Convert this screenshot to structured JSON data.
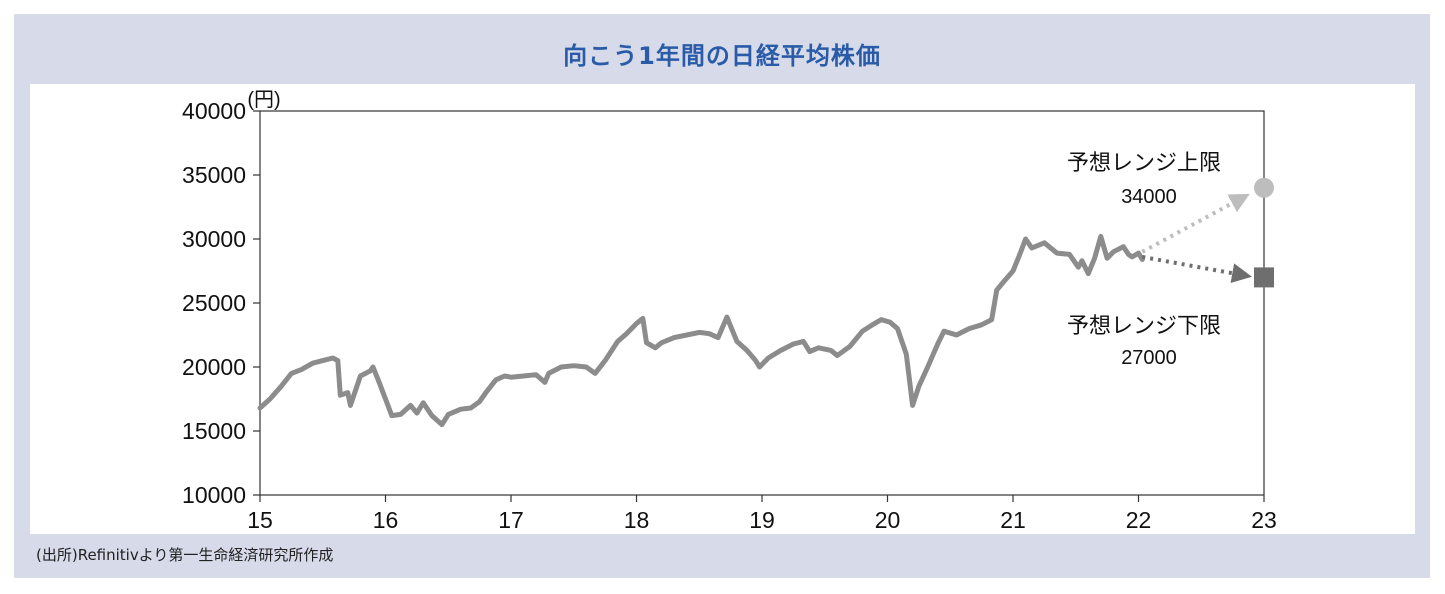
{
  "title": "向こう1年間の日経平均株価",
  "source": "(出所)Refinitivより第一生命経済研究所作成",
  "colors": {
    "background": "#d6dae9",
    "title": "#2a5ba8",
    "line": "#8c8c8c",
    "upper": "#bdbdbd",
    "lower": "#6e6e6e"
  },
  "chart_data": {
    "type": "line",
    "ylabel_unit": "(円)",
    "ylim": [
      10000,
      40000
    ],
    "xlim": [
      15,
      23
    ],
    "x_ticks": [
      "15",
      "16",
      "17",
      "18",
      "19",
      "20",
      "21",
      "22",
      "23"
    ],
    "y_ticks": [
      "10000",
      "15000",
      "20000",
      "25000",
      "30000",
      "35000",
      "40000"
    ],
    "series": [
      {
        "points": [
          [
            15.0,
            16800
          ],
          [
            15.08,
            17500
          ],
          [
            15.17,
            18500
          ],
          [
            15.25,
            19500
          ],
          [
            15.33,
            19800
          ],
          [
            15.42,
            20300
          ],
          [
            15.5,
            20500
          ],
          [
            15.58,
            20700
          ],
          [
            15.62,
            20500
          ],
          [
            15.64,
            17800
          ],
          [
            15.7,
            18000
          ],
          [
            15.72,
            17000
          ],
          [
            15.8,
            19300
          ],
          [
            15.88,
            19700
          ],
          [
            15.9,
            20000
          ],
          [
            15.95,
            18800
          ],
          [
            16.0,
            17500
          ],
          [
            16.05,
            16200
          ],
          [
            16.12,
            16300
          ],
          [
            16.2,
            17000
          ],
          [
            16.25,
            16400
          ],
          [
            16.3,
            17200
          ],
          [
            16.37,
            16200
          ],
          [
            16.45,
            15500
          ],
          [
            16.5,
            16300
          ],
          [
            16.6,
            16700
          ],
          [
            16.68,
            16800
          ],
          [
            16.75,
            17300
          ],
          [
            16.8,
            18000
          ],
          [
            16.88,
            19000
          ],
          [
            16.95,
            19300
          ],
          [
            17.0,
            19200
          ],
          [
            17.1,
            19300
          ],
          [
            17.2,
            19400
          ],
          [
            17.27,
            18800
          ],
          [
            17.3,
            19500
          ],
          [
            17.4,
            20000
          ],
          [
            17.5,
            20100
          ],
          [
            17.6,
            20000
          ],
          [
            17.67,
            19500
          ],
          [
            17.75,
            20500
          ],
          [
            17.85,
            22000
          ],
          [
            17.92,
            22600
          ],
          [
            18.0,
            23400
          ],
          [
            18.05,
            23800
          ],
          [
            18.08,
            21900
          ],
          [
            18.15,
            21500
          ],
          [
            18.2,
            21900
          ],
          [
            18.3,
            22300
          ],
          [
            18.4,
            22500
          ],
          [
            18.5,
            22700
          ],
          [
            18.58,
            22600
          ],
          [
            18.65,
            22300
          ],
          [
            18.72,
            23900
          ],
          [
            18.8,
            22000
          ],
          [
            18.88,
            21300
          ],
          [
            18.95,
            20500
          ],
          [
            18.98,
            20000
          ],
          [
            19.05,
            20700
          ],
          [
            19.15,
            21300
          ],
          [
            19.25,
            21800
          ],
          [
            19.33,
            22000
          ],
          [
            19.38,
            21200
          ],
          [
            19.45,
            21500
          ],
          [
            19.55,
            21300
          ],
          [
            19.6,
            20900
          ],
          [
            19.7,
            21600
          ],
          [
            19.8,
            22800
          ],
          [
            19.88,
            23300
          ],
          [
            19.95,
            23700
          ],
          [
            20.02,
            23500
          ],
          [
            20.08,
            23000
          ],
          [
            20.15,
            21000
          ],
          [
            20.2,
            17000
          ],
          [
            20.25,
            18500
          ],
          [
            20.32,
            20000
          ],
          [
            20.4,
            21800
          ],
          [
            20.45,
            22800
          ],
          [
            20.55,
            22500
          ],
          [
            20.65,
            23000
          ],
          [
            20.75,
            23300
          ],
          [
            20.83,
            23700
          ],
          [
            20.87,
            26000
          ],
          [
            20.92,
            26600
          ],
          [
            21.0,
            27500
          ],
          [
            21.05,
            28700
          ],
          [
            21.1,
            30000
          ],
          [
            21.15,
            29300
          ],
          [
            21.25,
            29700
          ],
          [
            21.35,
            28900
          ],
          [
            21.45,
            28800
          ],
          [
            21.52,
            27800
          ],
          [
            21.55,
            28300
          ],
          [
            21.6,
            27300
          ],
          [
            21.65,
            28500
          ],
          [
            21.7,
            30200
          ],
          [
            21.75,
            28500
          ],
          [
            21.8,
            29000
          ],
          [
            21.88,
            29400
          ],
          [
            21.92,
            28800
          ],
          [
            21.95,
            28600
          ],
          [
            22.0,
            28900
          ],
          [
            22.03,
            28400
          ]
        ]
      }
    ],
    "upper": {
      "label": "予想レンジ上限",
      "value_label": "34000",
      "start": [
        22.03,
        29000
      ],
      "end": [
        23.0,
        34000
      ]
    },
    "lower": {
      "label": "予想レンジ下限",
      "value_label": "27000",
      "start": [
        22.03,
        28600
      ],
      "end": [
        23.0,
        27000
      ]
    }
  }
}
